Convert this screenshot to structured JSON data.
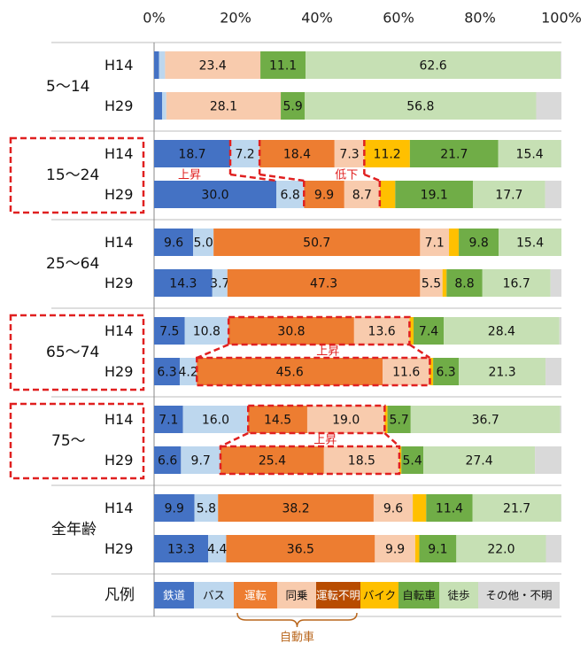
{
  "chart_data": {
    "type": "bar",
    "orientation": "horizontal",
    "stacked": true,
    "xlim": [
      0,
      100
    ],
    "x_ticks": [
      "0%",
      "20%",
      "40%",
      "60%",
      "80%",
      "100%"
    ],
    "series": [
      {
        "key": "rail",
        "name": "鉄道",
        "color": "#4472c4"
      },
      {
        "key": "bus",
        "name": "バス",
        "color": "#bdd7ee"
      },
      {
        "key": "drive",
        "name": "運転",
        "color": "#ed7d31"
      },
      {
        "key": "ride",
        "name": "同乗",
        "color": "#f8cbad"
      },
      {
        "key": "unknown",
        "name": "運転不明",
        "color": "#b84c00"
      },
      {
        "key": "moto",
        "name": "バイク",
        "color": "#ffc000"
      },
      {
        "key": "bike",
        "name": "自転車",
        "color": "#70ad47"
      },
      {
        "key": "walk",
        "name": "徒歩",
        "color": "#c6e0b4"
      },
      {
        "key": "other",
        "name": "その他・不明",
        "color": "#d9d9d9"
      }
    ],
    "legend_title": "凡例",
    "legend_group_label": "自動車",
    "groups": [
      {
        "label": "5〜14",
        "highlight": false,
        "rows": [
          {
            "year": "H14",
            "values": [
              1.2,
              1.5,
              0.0,
              23.4,
              0.0,
              0.0,
              11.1,
              62.6,
              0.2
            ],
            "labels": [
              "",
              "",
              "",
              "23.4",
              "",
              "",
              "11.1",
              "62.6",
              ""
            ]
          },
          {
            "year": "H29",
            "values": [
              2.0,
              1.0,
              0.0,
              28.1,
              0.0,
              0.0,
              5.9,
              56.8,
              6.2
            ],
            "labels": [
              "",
              "",
              "",
              "28.1",
              "",
              "",
              "5.9",
              "56.8",
              ""
            ]
          }
        ]
      },
      {
        "label": "15〜24",
        "highlight": true,
        "rows": [
          {
            "year": "H14",
            "values": [
              18.7,
              7.2,
              18.4,
              7.3,
              0.0,
              11.2,
              21.7,
              15.4,
              0.1
            ],
            "labels": [
              "18.7",
              "7.2",
              "18.4",
              "7.3",
              "",
              "11.2",
              "21.7",
              "15.4",
              ""
            ]
          },
          {
            "year": "H29",
            "values": [
              30.0,
              6.8,
              9.9,
              8.7,
              0.0,
              3.8,
              19.1,
              17.7,
              4.0
            ],
            "labels": [
              "30.0",
              "6.8",
              "9.9",
              "8.7",
              "",
              "",
              "19.1",
              "17.7",
              ""
            ]
          }
        ]
      },
      {
        "label": "25〜64",
        "highlight": false,
        "rows": [
          {
            "year": "H14",
            "values": [
              9.6,
              5.0,
              50.7,
              7.1,
              0.0,
              2.4,
              9.8,
              15.4,
              0.0
            ],
            "labels": [
              "9.6",
              "5.0",
              "50.7",
              "7.1",
              "",
              "",
              "9.8",
              "15.4",
              ""
            ]
          },
          {
            "year": "H29",
            "values": [
              14.3,
              3.7,
              47.3,
              5.5,
              0.0,
              1.0,
              8.8,
              16.7,
              2.7
            ],
            "labels": [
              "14.3",
              "3.7",
              "47.3",
              "5.5",
              "",
              "",
              "8.8",
              "16.7",
              ""
            ]
          }
        ]
      },
      {
        "label": "65〜74",
        "highlight": true,
        "rows": [
          {
            "year": "H14",
            "values": [
              7.5,
              10.8,
              30.8,
              13.6,
              0.0,
              1.0,
              7.4,
              28.4,
              0.5
            ],
            "labels": [
              "7.5",
              "10.8",
              "30.8",
              "13.6",
              "",
              "",
              "7.4",
              "28.4",
              ""
            ]
          },
          {
            "year": "H29",
            "values": [
              6.3,
              4.2,
              45.6,
              11.6,
              0.0,
              0.8,
              6.3,
              21.3,
              3.9
            ],
            "labels": [
              "6.3",
              "4.2",
              "45.6",
              "11.6",
              "",
              "",
              "6.3",
              "21.3",
              ""
            ]
          }
        ]
      },
      {
        "label": "75〜",
        "highlight": true,
        "rows": [
          {
            "year": "H14",
            "values": [
              7.1,
              16.0,
              14.5,
              19.0,
              0.0,
              0.7,
              5.7,
              36.7,
              0.3
            ],
            "labels": [
              "7.1",
              "16.0",
              "14.5",
              "19.0",
              "",
              "",
              "5.7",
              "36.7",
              ""
            ]
          },
          {
            "year": "H29",
            "values": [
              6.6,
              9.7,
              25.4,
              18.5,
              0.0,
              0.5,
              5.4,
              27.4,
              6.5
            ],
            "labels": [
              "6.6",
              "9.7",
              "25.4",
              "18.5",
              "",
              "",
              "5.4",
              "27.4",
              ""
            ]
          }
        ]
      },
      {
        "label": "全年齢",
        "highlight": false,
        "rows": [
          {
            "year": "H14",
            "values": [
              9.9,
              5.8,
              38.2,
              9.6,
              0.0,
              3.3,
              11.4,
              21.7,
              0.1
            ],
            "labels": [
              "9.9",
              "5.8",
              "38.2",
              "9.6",
              "",
              "",
              "11.4",
              "21.7",
              ""
            ]
          },
          {
            "year": "H29",
            "values": [
              13.3,
              4.4,
              36.5,
              9.9,
              0.0,
              1.0,
              9.1,
              22.0,
              3.8
            ],
            "labels": [
              "13.3",
              "4.4",
              "36.5",
              "9.9",
              "",
              "",
              "9.1",
              "22.0",
              ""
            ]
          }
        ]
      }
    ],
    "annotations": [
      {
        "text": "上昇",
        "group": "15〜24",
        "series": "rail"
      },
      {
        "text": "低下",
        "group": "15〜24",
        "series": "drive"
      },
      {
        "text": "上昇",
        "group": "65〜74",
        "series": "drive"
      },
      {
        "text": "上昇",
        "group": "75〜",
        "series": "drive"
      }
    ]
  }
}
